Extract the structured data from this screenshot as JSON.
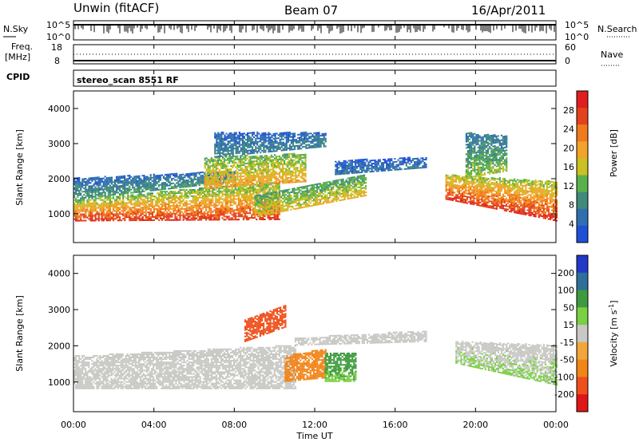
{
  "header": {
    "station": "Unwin (fitACF)",
    "beam": "Beam 07",
    "date": "16/Apr/2011"
  },
  "side_labels": {
    "nsky": "N.Sky",
    "nsearch": "N.Search",
    "freq": "Freq.",
    "freq_unit": "[MHz]",
    "nave": "Nave",
    "cpid": "CPID"
  },
  "noise_axis": {
    "left_top": "10^5",
    "left_bottom": "10^0",
    "right_top": "10^5",
    "right_bottom": "10^0"
  },
  "freq_axis": {
    "left_top": "18",
    "left_bottom": "8",
    "right_top": "60",
    "right_bottom": "0"
  },
  "cpid_text": "stereo_scan 8551 RF",
  "time_axis": {
    "ticks": [
      "00:00",
      "04:00",
      "08:00",
      "12:00",
      "16:00",
      "20:00",
      "00:00"
    ],
    "label": "Time UT"
  },
  "colors": {
    "power": [
      "#1f4fd8",
      "#2f6fb0",
      "#3f8a7a",
      "#5ab04a",
      "#c9c021",
      "#f3a22a",
      "#f07a1c",
      "#e3421b",
      "#e01e1e"
    ],
    "velocity": [
      "#2238c8",
      "#2f6f9a",
      "#3e9a3e",
      "#79d042",
      "#c8c8c4",
      "#f2a63a",
      "#f28518",
      "#ef4f1b",
      "#e01515"
    ]
  },
  "chart_data": [
    {
      "type": "heatmap",
      "name": "power",
      "ylabel": "Slant Range [km]",
      "xlabel": "",
      "x_range_hours": [
        0,
        24
      ],
      "ylim": [
        180,
        4500
      ],
      "yticks": [
        1000,
        2000,
        3000,
        4000
      ],
      "colorbar": {
        "label": "Power [dB]",
        "min": 0,
        "max": 32,
        "ticks": [
          4,
          8,
          12,
          16,
          20,
          24,
          28
        ]
      },
      "bands": [
        {
          "t0": 0.0,
          "t1": 10.2,
          "r0": [
            780,
            820
          ],
          "r1": [
            1400,
            1900
          ],
          "v": [
            28,
            12
          ]
        },
        {
          "t0": 0.0,
          "t1": 8.0,
          "r0": [
            1400,
            1900
          ],
          "r1": [
            2000,
            2200
          ],
          "v": [
            10,
            4
          ]
        },
        {
          "t0": 6.5,
          "t1": 11.5,
          "r0": [
            1700,
            1900
          ],
          "r1": [
            2600,
            2700
          ],
          "v": [
            20,
            12
          ]
        },
        {
          "t0": 9.0,
          "t1": 14.5,
          "r0": [
            900,
            1500
          ],
          "r1": [
            1500,
            2100
          ],
          "v": [
            18,
            10
          ]
        },
        {
          "t0": 7.0,
          "t1": 12.5,
          "r0": [
            2600,
            2900
          ],
          "r1": [
            3300,
            3300
          ],
          "v": [
            8,
            4
          ]
        },
        {
          "t0": 13.0,
          "t1": 17.5,
          "r0": [
            2100,
            2300
          ],
          "r1": [
            2500,
            2600
          ],
          "v": [
            6,
            3
          ]
        },
        {
          "t0": 18.5,
          "t1": 24.0,
          "r0": [
            1400,
            780
          ],
          "r1": [
            2100,
            1900
          ],
          "v": [
            28,
            14
          ]
        },
        {
          "t0": 19.5,
          "t1": 21.5,
          "r0": [
            2000,
            2200
          ],
          "r1": [
            3300,
            3200
          ],
          "v": [
            14,
            6
          ]
        }
      ]
    },
    {
      "type": "heatmap",
      "name": "velocity",
      "ylabel": "Slant Range [km]",
      "xlabel": "Time UT",
      "x_range_hours": [
        0,
        24
      ],
      "ylim": [
        180,
        4500
      ],
      "yticks": [
        1000,
        2000,
        3000,
        4000
      ],
      "colorbar": {
        "label": "Velocity [m s^-1]",
        "min": -250,
        "max": 250,
        "ticks": [
          200,
          100,
          50,
          15,
          -15,
          -50,
          -100,
          -200
        ]
      },
      "bands": [
        {
          "t0": 0.0,
          "t1": 11.0,
          "r0": [
            800,
            800
          ],
          "r1": [
            1700,
            2000
          ],
          "v": [
            0,
            0
          ]
        },
        {
          "t0": 8.5,
          "t1": 10.5,
          "r0": [
            2100,
            2500
          ],
          "r1": [
            2700,
            3100
          ],
          "v": [
            -180,
            -180
          ]
        },
        {
          "t0": 10.5,
          "t1": 12.5,
          "r0": [
            1000,
            1100
          ],
          "r1": [
            1700,
            1900
          ],
          "v": [
            -70,
            -70
          ]
        },
        {
          "t0": 12.5,
          "t1": 14.0,
          "r0": [
            1000,
            1000
          ],
          "r1": [
            1800,
            1800
          ],
          "v": [
            40,
            80
          ]
        },
        {
          "t0": 11.0,
          "t1": 17.5,
          "r0": [
            2000,
            2100
          ],
          "r1": [
            2200,
            2400
          ],
          "v": [
            0,
            0
          ]
        },
        {
          "t0": 19.0,
          "t1": 24.0,
          "r0": [
            1500,
            900
          ],
          "r1": [
            2100,
            2000
          ],
          "v": [
            20,
            0
          ]
        }
      ]
    }
  ]
}
